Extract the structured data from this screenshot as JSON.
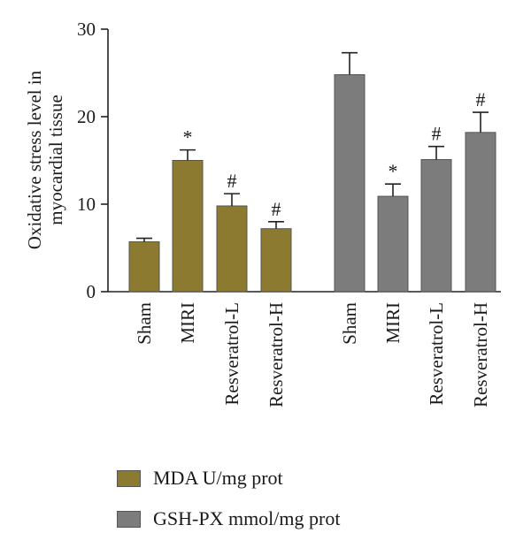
{
  "chart_data": {
    "type": "bar",
    "ylabel": "Oxidative stress level in myocardial tissue",
    "ylim": [
      0,
      30
    ],
    "yticks": [
      0,
      10,
      20,
      30
    ],
    "categories": [
      "Sham",
      "MIRI",
      "Resveratrol-L",
      "Resveratrol-H"
    ],
    "series": [
      {
        "name": "MDA U/mg prot",
        "color": "#8b7a2f",
        "values": [
          5.7,
          15.0,
          9.8,
          7.2
        ],
        "errors": [
          0.4,
          1.2,
          1.4,
          0.8
        ],
        "annotations": [
          "",
          "*",
          "#",
          "#"
        ]
      },
      {
        "name": "GSH-PX mmol/mg prot",
        "color": "#7c7c7c",
        "values": [
          24.8,
          10.9,
          15.1,
          18.2
        ],
        "errors": [
          2.5,
          1.4,
          1.5,
          2.3
        ],
        "annotations": [
          "",
          "*",
          "#",
          "#"
        ]
      }
    ],
    "legend_position": "bottom-left"
  }
}
